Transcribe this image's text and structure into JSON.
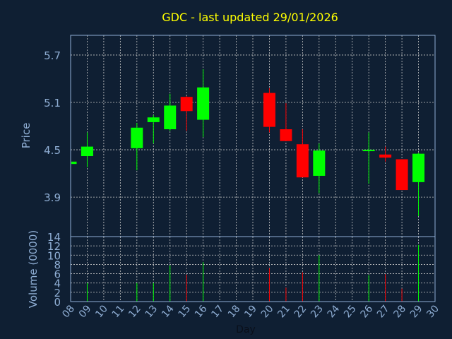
{
  "chart_data": {
    "type": "candlestick",
    "title": "GDC - last updated 29/01/2026",
    "xlabel": "Day",
    "price_axis": {
      "label": "Price",
      "ylim": [
        3.4,
        5.95
      ],
      "ticks": [
        "3.9",
        "4.5",
        "5.1",
        "5.7"
      ]
    },
    "volume_axis": {
      "label": "Volume (0000)",
      "ylim": [
        0,
        14
      ],
      "ticks": [
        "0",
        "2",
        "4",
        "6",
        "8",
        "10",
        "12",
        "14"
      ]
    },
    "x_ticks": [
      "08",
      "09",
      "10",
      "11",
      "12",
      "13",
      "14",
      "15",
      "16",
      "17",
      "18",
      "19",
      "20",
      "21",
      "22",
      "23",
      "24",
      "25",
      "26",
      "27",
      "28",
      "29",
      "30"
    ],
    "xlim": [
      8,
      30
    ],
    "grid": true,
    "colors": {
      "up": "#00ff00",
      "down": "#ff0000",
      "background": "#0f1f33",
      "title": "#ffff00",
      "axis_text": "#8faed4"
    },
    "candles": [
      {
        "day": 8,
        "open": 4.32,
        "high": 4.35,
        "low": 4.31,
        "close": 4.35,
        "volume": 0
      },
      {
        "day": 9,
        "open": 4.42,
        "high": 4.72,
        "low": 4.28,
        "close": 4.54,
        "volume": 4
      },
      {
        "day": 12,
        "open": 4.52,
        "high": 4.84,
        "low": 4.24,
        "close": 4.78,
        "volume": 4
      },
      {
        "day": 13,
        "open": 4.85,
        "high": 4.94,
        "low": 4.58,
        "close": 4.91,
        "volume": 4
      },
      {
        "day": 14,
        "open": 4.76,
        "high": 5.21,
        "low": 4.74,
        "close": 5.06,
        "volume": 7.8
      },
      {
        "day": 15,
        "open": 5.17,
        "high": 5.18,
        "low": 4.74,
        "close": 4.99,
        "volume": 5.8
      },
      {
        "day": 16,
        "open": 4.88,
        "high": 5.52,
        "low": 4.66,
        "close": 5.29,
        "volume": 8.5
      },
      {
        "day": 20,
        "open": 5.22,
        "high": 5.28,
        "low": 4.72,
        "close": 4.79,
        "volume": 7.2
      },
      {
        "day": 21,
        "open": 4.76,
        "high": 5.09,
        "low": 4.62,
        "close": 4.61,
        "volume": 3
      },
      {
        "day": 22,
        "open": 4.57,
        "high": 4.76,
        "low": 4.15,
        "close": 4.15,
        "volume": 6.3
      },
      {
        "day": 23,
        "open": 4.17,
        "high": 4.58,
        "low": 3.95,
        "close": 4.49,
        "volume": 10
      },
      {
        "day": 26,
        "open": 4.49,
        "high": 4.72,
        "low": 4.07,
        "close": 4.5,
        "volume": 5.7
      },
      {
        "day": 27,
        "open": 4.44,
        "high": 4.54,
        "low": 4.35,
        "close": 4.4,
        "volume": 5.9
      },
      {
        "day": 28,
        "open": 4.38,
        "high": 4.38,
        "low": 3.99,
        "close": 3.99,
        "volume": 2.8
      },
      {
        "day": 29,
        "open": 4.09,
        "high": 4.46,
        "low": 3.66,
        "close": 4.45,
        "volume": 12.2
      }
    ]
  }
}
